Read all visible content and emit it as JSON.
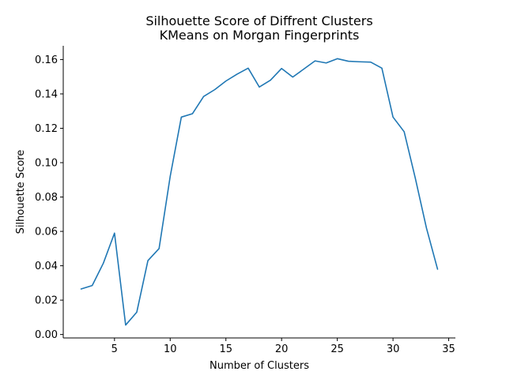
{
  "chart_data": {
    "type": "line",
    "title_line1": "Silhouette Score of Diffrent Clusters",
    "title_line2": "KMeans on Morgan Fingerprints",
    "xlabel": "Number of Clusters",
    "ylabel": "Silhouette Score",
    "xlim": [
      0.4,
      35.6
    ],
    "ylim": [
      -0.002,
      0.168
    ],
    "xticks": [
      5,
      10,
      15,
      20,
      25,
      30,
      35
    ],
    "xtick_labels": [
      "5",
      "10",
      "15",
      "20",
      "25",
      "30",
      "35"
    ],
    "yticks": [
      0.0,
      0.02,
      0.04,
      0.06,
      0.08,
      0.1,
      0.12,
      0.14,
      0.16
    ],
    "ytick_labels": [
      "0.00",
      "0.02",
      "0.04",
      "0.06",
      "0.08",
      "0.10",
      "0.12",
      "0.14",
      "0.16"
    ],
    "grid": false,
    "line_color": "#1f77b4",
    "series": [
      {
        "x": [
          2,
          3,
          4,
          5,
          6,
          7,
          8,
          9,
          10,
          11,
          12,
          13,
          14,
          15,
          16,
          17,
          18,
          19,
          20,
          21,
          22,
          23,
          24,
          25,
          26,
          27,
          28,
          29,
          30,
          31,
          32,
          33,
          34
        ],
        "values": [
          0.0265,
          0.0285,
          0.0415,
          0.059,
          0.0055,
          0.013,
          0.043,
          0.05,
          0.092,
          0.1265,
          0.1285,
          0.1385,
          0.1425,
          0.1475,
          0.1515,
          0.155,
          0.144,
          0.148,
          0.1548,
          0.1498,
          0.1545,
          0.1592,
          0.158,
          0.1605,
          0.159,
          0.1587,
          0.1585,
          0.155,
          0.1265,
          0.118,
          0.091,
          0.062,
          0.038
        ]
      }
    ]
  }
}
